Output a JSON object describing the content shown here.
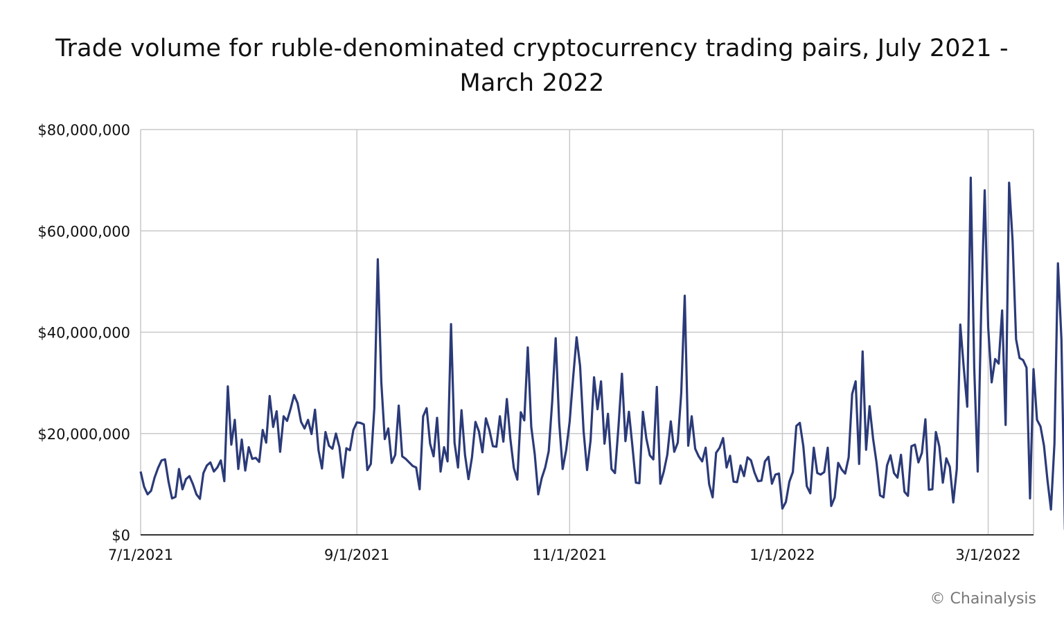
{
  "chart_data": {
    "type": "line",
    "title_line1": "Trade volume for ruble-denominated cryptocurrency trading pairs, July 2021 -",
    "title_line2": "March 2022",
    "x_start": "7/1/2021",
    "x_end": "3/14/2022",
    "xlabel": "",
    "ylabel": "",
    "ylim": [
      0,
      80000000
    ],
    "y_ticks": [
      "$0",
      "$20,000,000",
      "$40,000,000",
      "$60,000,000",
      "$80,000,000"
    ],
    "x_ticks": [
      "7/1/2021",
      "9/1/2021",
      "11/1/2021",
      "1/1/2022",
      "3/1/2022"
    ],
    "grid": true,
    "line_color": "#2b3a78",
    "series": [
      {
        "values": [
          12500000,
          9500000,
          8000000,
          8700000,
          11300000,
          13200000,
          14700000,
          14900000,
          10500000,
          7200000,
          7500000,
          13000000,
          9000000,
          11000000,
          11600000,
          10000000,
          8000000,
          7100000,
          12200000,
          13700000,
          14300000,
          12500000,
          13300000,
          14700000,
          10600000,
          29300000,
          17800000,
          22700000,
          13000000,
          18800000,
          12700000,
          17300000,
          15000000,
          15200000,
          14400000,
          20700000,
          18200000,
          27400000,
          21300000,
          24400000,
          16400000,
          23400000,
          22500000,
          24900000,
          27600000,
          26000000,
          22300000,
          21000000,
          22700000,
          19900000,
          24700000,
          16700000,
          13100000,
          20300000,
          17600000,
          17000000,
          20000000,
          17300000,
          11300000,
          17100000,
          16700000,
          20700000,
          22200000,
          22100000,
          21800000,
          12800000,
          14000000,
          25000000,
          54400000,
          30200000,
          18900000,
          21000000,
          14200000,
          15800000,
          25500000,
          15500000,
          15000000,
          14300000,
          13600000,
          13300000,
          9000000,
          23400000,
          25000000,
          18000000,
          15500000,
          23100000,
          12500000,
          17300000,
          14500000,
          41600000,
          18200000,
          13300000,
          24600000,
          15800000,
          11000000,
          15300000,
          22300000,
          20400000,
          16300000,
          23000000,
          20700000,
          17500000,
          17400000,
          23400000,
          18400000,
          26800000,
          19000000,
          13200000,
          10900000,
          24200000,
          22600000,
          37000000,
          21300000,
          15900000,
          8000000,
          11200000,
          13300000,
          16500000,
          26300000,
          38800000,
          22200000,
          13000000,
          16700000,
          22300000,
          31000000,
          39000000,
          33300000,
          20500000,
          12800000,
          18600000,
          31100000,
          24800000,
          30300000,
          18000000,
          23900000,
          13000000,
          12200000,
          21300000,
          31800000,
          18500000,
          24300000,
          17500000,
          10300000,
          10200000,
          24300000,
          19000000,
          15700000,
          14900000,
          29200000,
          10100000,
          12500000,
          15800000,
          22400000,
          16400000,
          18200000,
          28000000,
          47200000,
          17600000,
          23400000,
          17000000,
          15500000,
          14500000,
          17200000,
          10000000,
          7400000,
          16200000,
          17200000,
          19100000,
          13300000,
          15600000,
          10500000,
          10400000,
          13700000,
          11600000,
          15300000,
          14700000,
          12300000,
          10600000,
          10700000,
          14500000,
          15400000,
          10100000,
          11900000,
          12100000,
          5200000,
          6500000,
          10500000,
          12400000,
          21500000,
          22100000,
          17500000,
          9600000,
          8200000,
          17200000,
          12200000,
          11900000,
          12400000,
          17200000,
          5700000,
          7400000,
          14200000,
          12900000,
          12100000,
          15300000,
          27800000,
          30300000,
          14000000,
          36200000,
          16800000,
          25400000,
          19000000,
          14200000,
          7800000,
          7400000,
          13700000,
          15700000,
          12200000,
          11300000,
          15800000,
          8500000,
          7700000,
          17500000,
          17800000,
          14300000,
          16200000,
          22800000,
          8900000,
          9000000,
          20300000,
          17400000,
          10300000,
          15100000,
          13400000,
          6400000,
          13000000,
          41500000,
          33000000,
          25300000,
          70500000,
          33000000,
          12500000,
          44300000,
          68000000,
          41000000,
          30100000,
          34700000,
          33800000,
          44300000,
          21700000,
          69500000,
          58000000,
          38600000,
          34900000,
          34500000,
          33000000,
          7200000,
          32700000,
          22700000,
          21400000,
          17600000,
          10800000,
          5000000,
          18000000,
          53600000,
          38600000,
          1000000
        ]
      }
    ],
    "credit": "© Chainalysis"
  }
}
